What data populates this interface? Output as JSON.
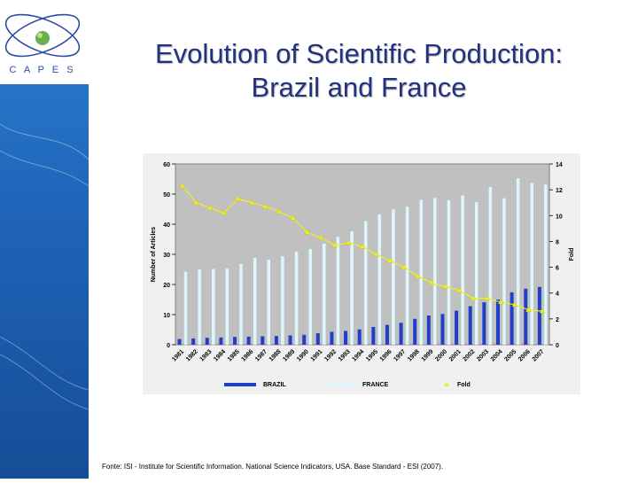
{
  "logo": {
    "text": "C A P E S"
  },
  "title": {
    "line1": "Evolution of Scientific Production:",
    "line2": "Brazil and France"
  },
  "source": "Fonte: ISI - Institute for Scientific Information. National Science Indicators, USA. Base Standard - ESI (2007).",
  "colors": {
    "sidebar": "#1f64b8",
    "brazil": "#1f3fc8",
    "france": "#dff5fa",
    "fold": "#f0f020",
    "plot_bg": "#c0c0c0",
    "title": "#22327e"
  },
  "chart_data": {
    "type": "bar",
    "categories": [
      "1981",
      "1982",
      "1983",
      "1984",
      "1985",
      "1986",
      "1987",
      "1988",
      "1989",
      "1990",
      "1991",
      "1992",
      "1993",
      "1994",
      "1995",
      "1996",
      "1997",
      "1998",
      "1999",
      "2000",
      "2001",
      "2002",
      "2003",
      "2004",
      "2005",
      "2006",
      "2007"
    ],
    "series": [
      {
        "name": "BRAZIL",
        "axis": "left",
        "values": [
          1.9,
          2.1,
          2.3,
          2.4,
          2.6,
          2.7,
          2.8,
          2.9,
          3.1,
          3.3,
          3.8,
          4.3,
          4.6,
          5.1,
          5.9,
          6.6,
          7.3,
          8.6,
          9.7,
          10.2,
          11.3,
          12.8,
          14.1,
          15.0,
          17.4,
          18.6,
          19.2
        ]
      },
      {
        "name": "FRANCE",
        "axis": "left",
        "values": [
          24.3,
          25.1,
          25.2,
          25.3,
          26.9,
          28.9,
          28.3,
          29.4,
          31.0,
          31.8,
          33.6,
          35.9,
          37.7,
          41.1,
          43.3,
          45.0,
          45.9,
          48.2,
          48.8,
          48.0,
          49.6,
          47.4,
          52.4,
          48.7,
          55.3,
          53.8,
          53.2
        ]
      },
      {
        "name": "Fold",
        "type": "line",
        "axis": "right",
        "values": [
          12.3,
          11.0,
          10.6,
          10.2,
          11.3,
          11.0,
          10.7,
          10.3,
          9.8,
          8.7,
          8.3,
          7.7,
          7.9,
          7.6,
          7.0,
          6.5,
          6.0,
          5.3,
          4.8,
          4.5,
          4.2,
          3.6,
          3.6,
          3.3,
          3.1,
          2.7,
          2.6
        ]
      }
    ],
    "yleft": {
      "label": "Number of Articles",
      "ticks": [
        "0",
        "10",
        "20",
        "30",
        "40",
        "50",
        "60"
      ],
      "ylim": [
        0,
        60
      ]
    },
    "yright": {
      "label": "Fold",
      "ticks": [
        "0",
        "2",
        "4",
        "6",
        "8",
        "10",
        "12",
        "14"
      ],
      "ylim": [
        0,
        14
      ]
    },
    "legend": [
      "BRAZIL",
      "FRANCE",
      "Fold"
    ],
    "legend_position": "bottom"
  }
}
